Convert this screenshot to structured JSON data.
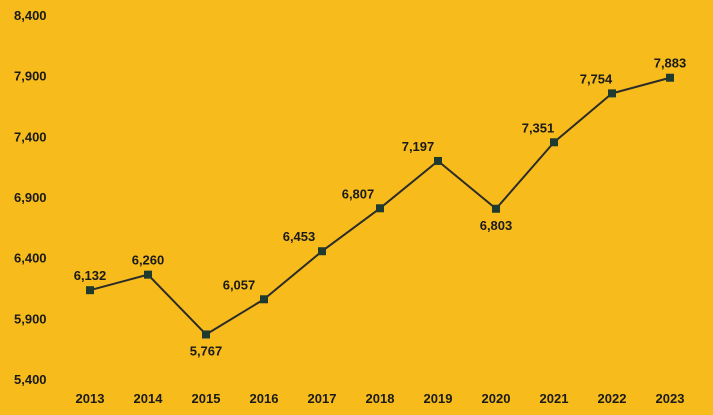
{
  "chart_data": {
    "type": "line",
    "title": "",
    "xlabel": "",
    "ylabel": "",
    "categories": [
      "2013",
      "2014",
      "2015",
      "2016",
      "2017",
      "2018",
      "2019",
      "2020",
      "2021",
      "2022",
      "2023"
    ],
    "series": [
      {
        "values": [
          6132,
          6260,
          5767,
          6057,
          6453,
          6807,
          7197,
          6803,
          7351,
          7754,
          7883
        ]
      }
    ],
    "data_labels": [
      "6,132",
      "6,260",
      "5,767",
      "6,057",
      "6,453",
      "6,807",
      "7,197",
      "6,803",
      "7,351",
      "7,754",
      "7,883"
    ],
    "ylim": [
      5400,
      8400
    ],
    "yticks": [
      5400,
      5900,
      6400,
      6900,
      7400,
      7900,
      8400
    ],
    "ytick_labels": [
      "5,400",
      "5,900",
      "6,400",
      "6,900",
      "7,400",
      "7,900",
      "8,400"
    ],
    "grid": false,
    "legend": "none",
    "colors": {
      "background": "#F7BC1B",
      "line": "#2b2b2b",
      "marker": "#1f3a2e",
      "text": "#1a1a1a"
    }
  }
}
